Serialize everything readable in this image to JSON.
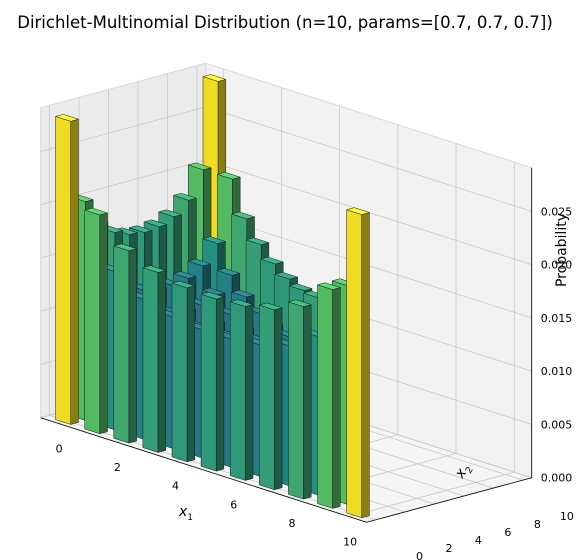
{
  "chart_data": {
    "type": "bar3d",
    "title": "Dirichlet-Multinomial Distribution (n=10, params=[0.7, 0.7, 0.7])",
    "n": 10,
    "params": [
      0.7,
      0.7,
      0.7
    ],
    "xlabel": "x",
    "xlabel_sub": "1",
    "ylabel": "x",
    "ylabel_sub": "2",
    "zlabel": "Probability",
    "xlim": [
      0,
      10
    ],
    "ylim": [
      0,
      10
    ],
    "zlim": [
      0,
      0.0291
    ],
    "x_ticks": [
      "0",
      "2",
      "4",
      "6",
      "8",
      "10"
    ],
    "y_ticks": [
      "0",
      "2",
      "4",
      "6",
      "8",
      "10"
    ],
    "z_ticks": [
      "0.000",
      "0.005",
      "0.010",
      "0.015",
      "0.020",
      "0.025"
    ],
    "grid": true,
    "colormap": "viridis",
    "x_values": [
      0,
      1,
      2,
      3,
      4,
      5,
      6,
      7,
      8,
      9,
      10
    ],
    "y_values": [
      0,
      1,
      2,
      3,
      4,
      5,
      6,
      7,
      8,
      9,
      10
    ],
    "bars_note": "bars at (x1, x2) with x1 + x2 <= 10; height = P(x1, x2, 10 - x1 - x2)"
  }
}
